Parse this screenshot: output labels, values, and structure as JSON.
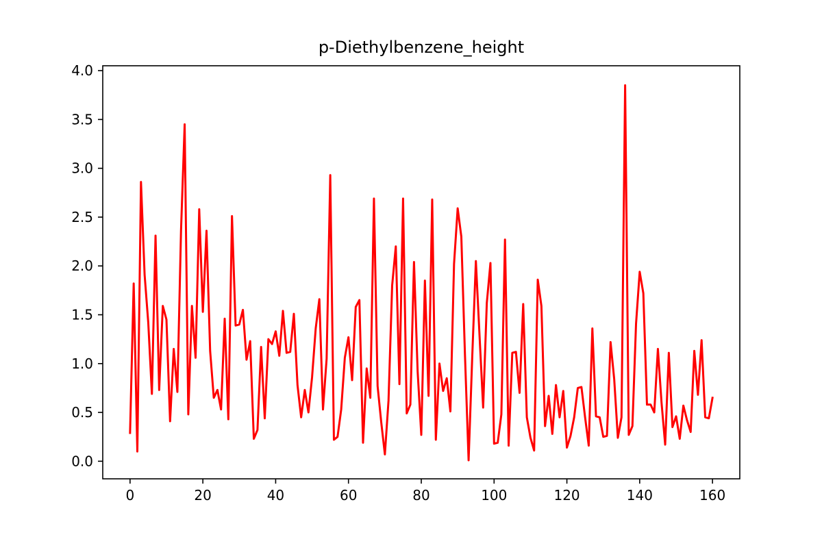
{
  "chart_data": {
    "type": "line",
    "title": "p-Diethylbenzene_height",
    "xlabel": "",
    "ylabel": "",
    "xlim": [
      -7.5,
      167.5
    ],
    "ylim": [
      -0.18,
      4.05
    ],
    "xticks": [
      0,
      20,
      40,
      60,
      80,
      100,
      120,
      140,
      160
    ],
    "xtick_labels": [
      "0",
      "20",
      "40",
      "60",
      "80",
      "100",
      "120",
      "140",
      "160"
    ],
    "yticks": [
      0.0,
      0.5,
      1.0,
      1.5,
      2.0,
      2.5,
      3.0,
      3.5,
      4.0
    ],
    "ytick_labels": [
      "0.0",
      "0.5",
      "1.0",
      "1.5",
      "2.0",
      "2.5",
      "3.0",
      "3.5",
      "4.0"
    ],
    "grid": false,
    "series": [
      {
        "color": "#ff0000",
        "x": [
          0,
          1,
          2,
          3,
          4,
          5,
          6,
          7,
          8,
          9,
          10,
          11,
          12,
          13,
          14,
          15,
          16,
          17,
          18,
          19,
          20,
          21,
          22,
          23,
          24,
          25,
          26,
          27,
          28,
          29,
          30,
          31,
          32,
          33,
          34,
          35,
          36,
          37,
          38,
          39,
          40,
          41,
          42,
          43,
          44,
          45,
          46,
          47,
          48,
          49,
          50,
          51,
          52,
          53,
          54,
          55,
          56,
          57,
          58,
          59,
          60,
          61,
          62,
          63,
          64,
          65,
          66,
          67,
          68,
          69,
          70,
          71,
          72,
          73,
          74,
          75,
          76,
          77,
          78,
          79,
          80,
          81,
          82,
          83,
          84,
          85,
          86,
          87,
          88,
          89,
          90,
          91,
          92,
          93,
          94,
          95,
          96,
          97,
          98,
          99,
          100,
          101,
          102,
          103,
          104,
          105,
          106,
          107,
          108,
          109,
          110,
          111,
          112,
          113,
          114,
          115,
          116,
          117,
          118,
          119,
          120,
          121,
          122,
          123,
          124,
          125,
          126,
          127,
          128,
          129,
          130,
          131,
          132,
          133,
          134,
          135,
          136,
          137,
          138,
          139,
          140,
          141,
          142,
          143,
          144,
          145,
          146,
          147,
          148,
          149,
          150,
          151,
          152,
          153,
          154,
          155,
          156,
          157,
          158,
          159,
          160
        ],
        "values": [
          0.29,
          1.82,
          0.1,
          2.86,
          1.91,
          1.42,
          0.69,
          2.31,
          0.73,
          1.59,
          1.45,
          0.41,
          1.15,
          0.71,
          2.36,
          3.45,
          0.48,
          1.59,
          1.06,
          2.58,
          1.53,
          2.36,
          1.13,
          0.65,
          0.73,
          0.53,
          1.46,
          0.43,
          2.51,
          1.39,
          1.4,
          1.55,
          1.04,
          1.23,
          0.23,
          0.32,
          1.17,
          0.44,
          1.25,
          1.2,
          1.33,
          1.08,
          1.54,
          1.11,
          1.12,
          1.51,
          0.78,
          0.45,
          0.73,
          0.5,
          0.86,
          1.36,
          1.66,
          0.53,
          1.05,
          2.93,
          0.22,
          0.25,
          0.53,
          1.06,
          1.27,
          0.83,
          1.58,
          1.65,
          0.19,
          0.95,
          0.65,
          2.69,
          0.77,
          0.4,
          0.07,
          0.62,
          1.8,
          2.2,
          0.79,
          2.69,
          0.49,
          0.58,
          2.04,
          0.92,
          0.27,
          1.85,
          0.67,
          2.68,
          0.22,
          1.0,
          0.72,
          0.85,
          0.51,
          2.02,
          2.59,
          2.3,
          1.09,
          0.01,
          1.07,
          2.05,
          1.29,
          0.55,
          1.62,
          2.03,
          0.18,
          0.19,
          0.48,
          2.27,
          0.16,
          1.11,
          1.12,
          0.7,
          1.61,
          0.45,
          0.24,
          0.11,
          1.86,
          1.59,
          0.36,
          0.67,
          0.28,
          0.78,
          0.45,
          0.72,
          0.14,
          0.26,
          0.45,
          0.75,
          0.76,
          0.45,
          0.16,
          1.36,
          0.46,
          0.45,
          0.25,
          0.26,
          1.22,
          0.84,
          0.24,
          0.45,
          3.85,
          0.27,
          0.36,
          1.41,
          1.94,
          1.72,
          0.58,
          0.58,
          0.5,
          1.15,
          0.6,
          0.17,
          1.11,
          0.35,
          0.46,
          0.23,
          0.57,
          0.42,
          0.3,
          1.13,
          0.68,
          1.24,
          0.45,
          0.44,
          0.65
        ]
      }
    ]
  }
}
